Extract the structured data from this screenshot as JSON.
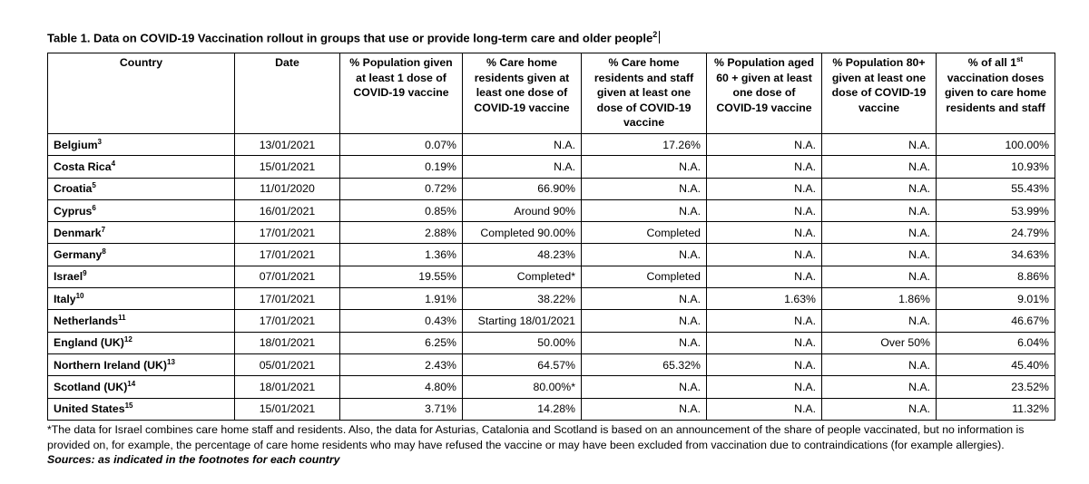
{
  "title": {
    "text": "Table 1. Data on COVID-19 Vaccination rollout in groups that use or provide long-term care and older people",
    "sup": "2"
  },
  "headers": [
    {
      "label": "Country"
    },
    {
      "label": "Date"
    },
    {
      "label": "% Population given at least 1 dose of COVID-19 vaccine"
    },
    {
      "label": "% Care home residents given at least one dose of COVID-19 vaccine"
    },
    {
      "label": "% Care home residents and staff given at least one dose of COVID-19 vaccine"
    },
    {
      "label": "% Population aged 60 + given at least one dose of COVID-19 vaccine"
    },
    {
      "label": "% Population 80+ given at least one dose of COVID-19 vaccine"
    },
    {
      "pre": "% of all 1",
      "sup": "st",
      "post": " vaccination doses given to care home residents and staff"
    }
  ],
  "rows": [
    {
      "country": "Belgium",
      "ref": "3",
      "date": "13/01/2021",
      "c1": "0.07%",
      "c2": "N.A.",
      "c3": "17.26%",
      "c4": "N.A.",
      "c5": "N.A.",
      "c6": "100.00%"
    },
    {
      "country": "Costa Rica",
      "ref": "4",
      "date": "15/01/2021",
      "c1": "0.19%",
      "c2": "N.A.",
      "c3": "N.A.",
      "c4": "N.A.",
      "c5": "N.A.",
      "c6": "10.93%"
    },
    {
      "country": "Croatia",
      "ref": "5",
      "date": "11/01/2020",
      "c1": "0.72%",
      "c2": "66.90%",
      "c3": "N.A.",
      "c4": "N.A.",
      "c5": "N.A.",
      "c6": "55.43%"
    },
    {
      "country": "Cyprus",
      "ref": "6",
      "date": "16/01/2021",
      "c1": "0.85%",
      "c2": "Around 90%",
      "c3": "N.A.",
      "c4": "N.A.",
      "c5": "N.A.",
      "c6": "53.99%"
    },
    {
      "country": "Denmark",
      "ref": "7",
      "date": "17/01/2021",
      "c1": "2.88%",
      "c2": "Completed 90.00%",
      "c3": "Completed",
      "c4": "N.A.",
      "c5": "N.A.",
      "c6": "24.79%"
    },
    {
      "country": "Germany",
      "ref": "8",
      "date": "17/01/2021",
      "c1": "1.36%",
      "c2": "48.23%",
      "c3": "N.A.",
      "c4": "N.A.",
      "c5": "N.A.",
      "c6": "34.63%"
    },
    {
      "country": "Israel",
      "ref": "9",
      "date": "07/01/2021",
      "c1": "19.55%",
      "c2": "Completed*",
      "c3": "Completed",
      "c4": "N.A.",
      "c5": "N.A.",
      "c6": "8.86%"
    },
    {
      "country": "Italy",
      "ref": "10",
      "date": "17/01/2021",
      "c1": "1.91%",
      "c2": "38.22%",
      "c3": "N.A.",
      "c4": "1.63%",
      "c5": "1.86%",
      "c6": "9.01%"
    },
    {
      "country": "Netherlands",
      "ref": "11",
      "date": "17/01/2021",
      "c1": "0.43%",
      "c2": "Starting 18/01/2021",
      "c3": "N.A.",
      "c4": "N.A.",
      "c5": "N.A.",
      "c6": "46.67%"
    },
    {
      "country": "England (UK)",
      "ref": "12",
      "date": "18/01/2021",
      "c1": "6.25%",
      "c2": "50.00%",
      "c3": "N.A.",
      "c4": "N.A.",
      "c5": "Over 50%",
      "c6": "6.04%"
    },
    {
      "country": "Northern Ireland (UK)",
      "ref": "13",
      "date": "05/01/2021",
      "c1": "2.43%",
      "c2": "64.57%",
      "c3": "65.32%",
      "c4": "N.A.",
      "c5": "N.A.",
      "c6": "45.40%"
    },
    {
      "country": "Scotland (UK)",
      "ref": "14",
      "date": "18/01/2021",
      "c1": "4.80%",
      "c2": "80.00%*",
      "c3": "N.A.",
      "c4": "N.A.",
      "c5": "N.A.",
      "c6": "23.52%"
    },
    {
      "country": "United States",
      "ref": "15",
      "date": "15/01/2021",
      "c1": "3.71%",
      "c2": "14.28%",
      "c3": "N.A.",
      "c4": "N.A.",
      "c5": "N.A.",
      "c6": "11.32%"
    }
  ],
  "note": "*The data for Israel combines care home staff and residents. Also, the data for Asturias, Catalonia and Scotland is based on an announcement of the share of people vaccinated, but no information is provided on, for example, the percentage of care home residents who may have refused the vaccine or may have been excluded from vaccination due to contraindications (for example allergies).",
  "sources": "Sources: as indicated in the footnotes for each country"
}
